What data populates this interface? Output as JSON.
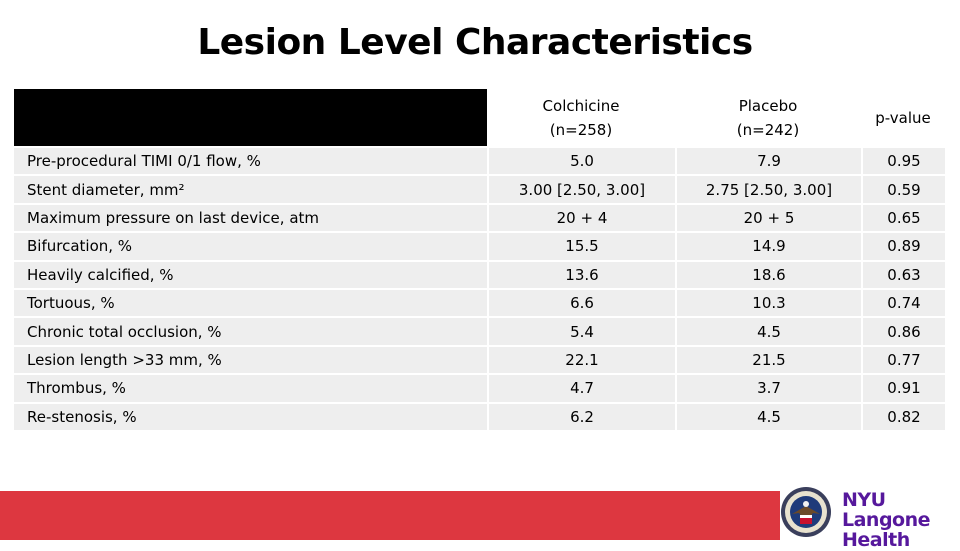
{
  "title": "Lesion Level Characteristics",
  "table": {
    "headers": [
      {
        "line1": "Colchicine",
        "line2": "(n=258)"
      },
      {
        "line1": "Placebo",
        "line2": "(n=242)"
      },
      {
        "line1": "p-value",
        "line2": ""
      }
    ],
    "rows": [
      {
        "label": "Pre-procedural TIMI 0/1 flow, %",
        "colchicine": "5.0",
        "placebo": "7.9",
        "p": "0.95"
      },
      {
        "label": "Stent diameter, mm²",
        "colchicine": "3.00 [2.50, 3.00]",
        "placebo": "2.75 [2.50, 3.00]",
        "p": "0.59"
      },
      {
        "label": "Maximum pressure on last device, atm",
        "colchicine": "20 + 4",
        "placebo": "20 + 5",
        "p": "0.65"
      },
      {
        "label": "Bifurcation, %",
        "colchicine": "15.5",
        "placebo": "14.9",
        "p": "0.89"
      },
      {
        "label": "Heavily calcified, %",
        "colchicine": "13.6",
        "placebo": "18.6",
        "p": "0.63"
      },
      {
        "label": "Tortuous, %",
        "colchicine": "6.6",
        "placebo": "10.3",
        "p": "0.74"
      },
      {
        "label": "Chronic total occlusion, %",
        "colchicine": "5.4",
        "placebo": "4.5",
        "p": "0.86"
      },
      {
        "label": "Lesion length >33 mm, %",
        "colchicine": "22.1",
        "placebo": "21.5",
        "p": "0.77"
      },
      {
        "label": "Thrombus, %",
        "colchicine": "4.7",
        "placebo": "3.7",
        "p": "0.91"
      },
      {
        "label": "Re-stenosis, %",
        "colchicine": "6.2",
        "placebo": "4.5",
        "p": "0.82"
      }
    ]
  },
  "footer": {
    "logo_line1": "NYU Langone",
    "logo_line2": "Health",
    "bar_color": "#dd3740",
    "logo_color": "#56189c"
  }
}
